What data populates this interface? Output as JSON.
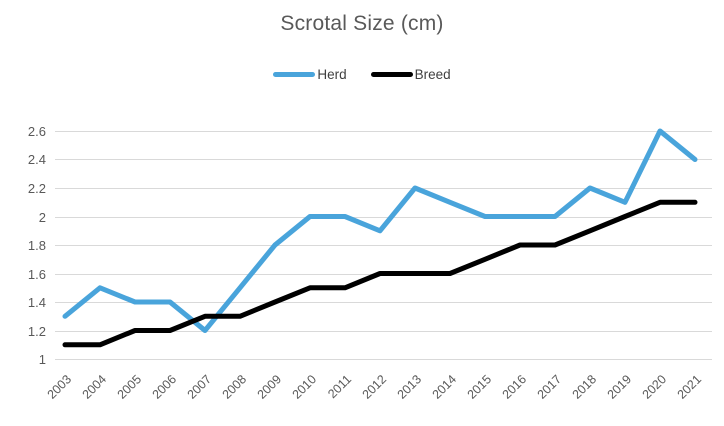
{
  "chart_data": {
    "type": "line",
    "title": "Scrotal Size (cm)",
    "categories": [
      "2003",
      "2004",
      "2005",
      "2006",
      "2007",
      "2008",
      "2009",
      "2010",
      "2011",
      "2012",
      "2013",
      "2014",
      "2015",
      "2016",
      "2017",
      "2018",
      "2019",
      "2020",
      "2021"
    ],
    "series": [
      {
        "name": "Herd",
        "color": "#49a4db",
        "values": [
          1.3,
          1.5,
          1.4,
          1.4,
          1.2,
          1.5,
          1.8,
          2.0,
          2.0,
          1.9,
          2.2,
          2.1,
          2.0,
          2.0,
          2.0,
          2.2,
          2.1,
          2.6,
          2.4
        ]
      },
      {
        "name": "Breed",
        "color": "#000000",
        "values": [
          1.1,
          1.1,
          1.2,
          1.2,
          1.3,
          1.3,
          1.4,
          1.5,
          1.5,
          1.6,
          1.6,
          1.6,
          1.7,
          1.8,
          1.8,
          1.9,
          2.0,
          2.1,
          2.1
        ]
      }
    ],
    "ylim": [
      1.0,
      2.6
    ],
    "ytick_step": 0.2,
    "ytick_labels": [
      "1",
      "1.2",
      "1.4",
      "1.6",
      "1.8",
      "2",
      "2.2",
      "2.4",
      "2.6"
    ],
    "xlabel": "",
    "ylabel": "",
    "grid": true,
    "legend_position": "top",
    "title_color": "#595959",
    "axis_label_color": "#595959",
    "legend_text_color": "#404040",
    "gridline_color": "#d9d9d9",
    "background_color": "#ffffff"
  }
}
